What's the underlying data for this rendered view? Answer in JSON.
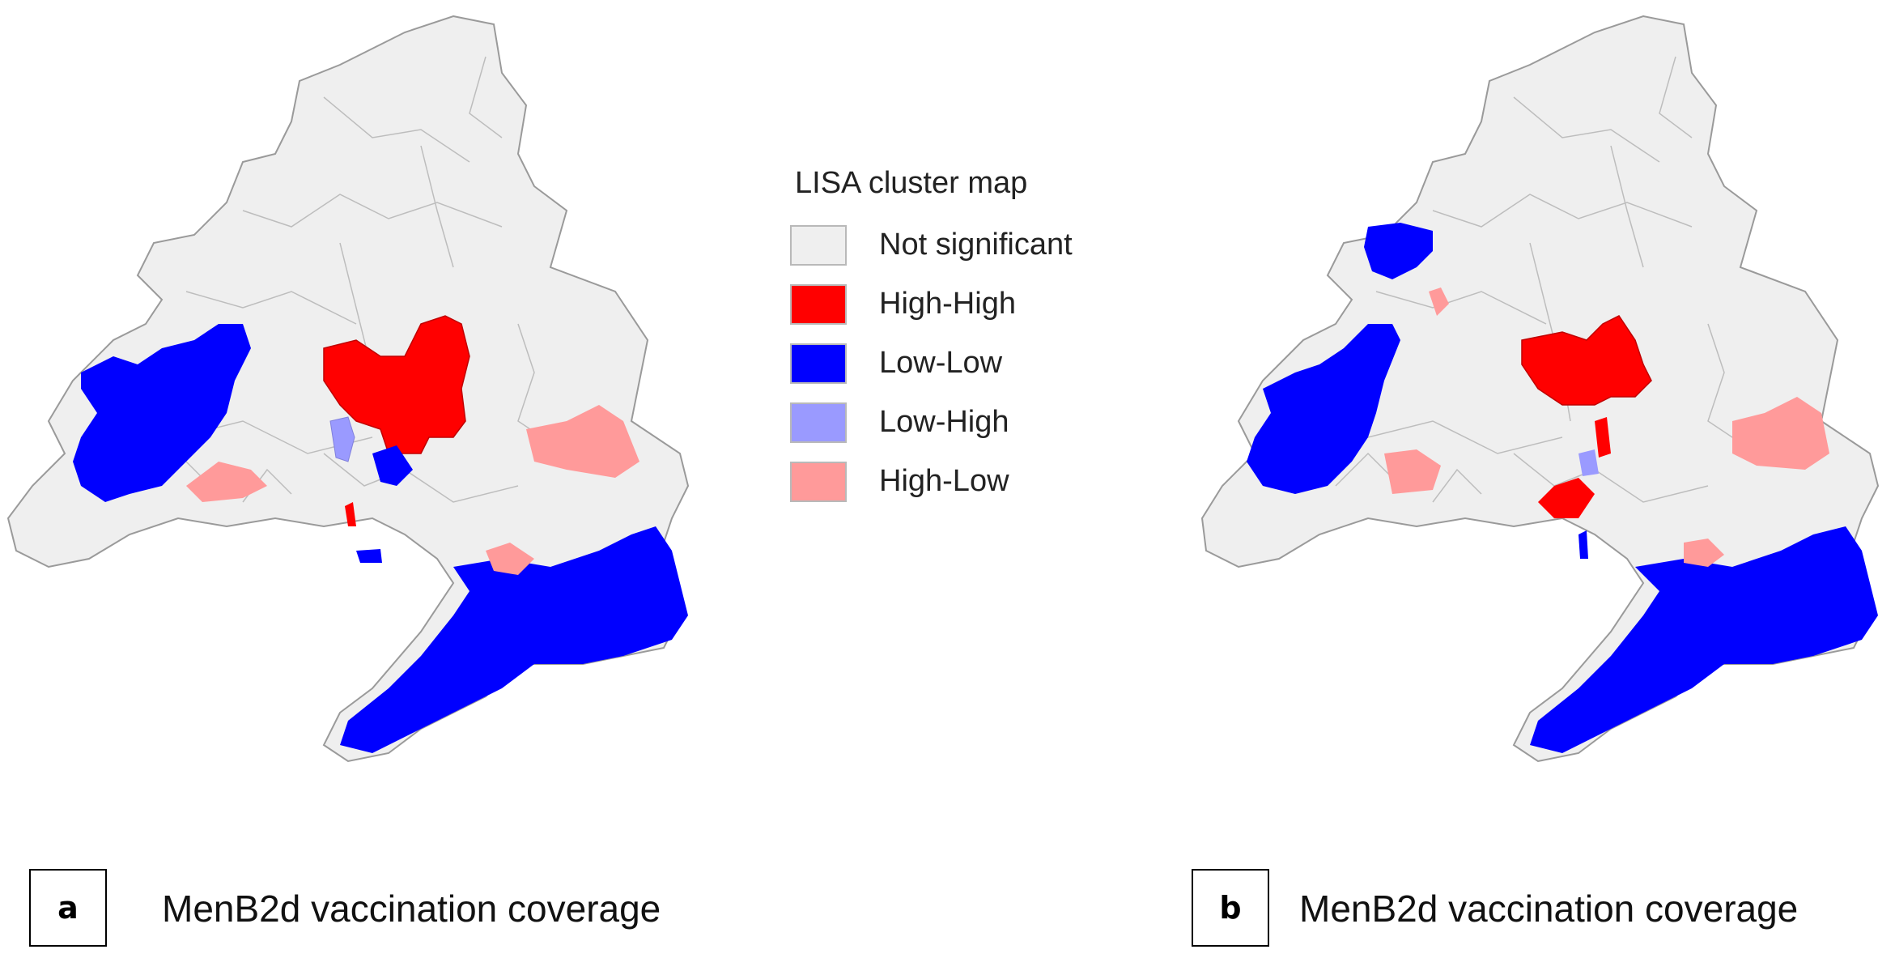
{
  "legend": {
    "title": "LISA cluster map",
    "items": [
      {
        "label": "Not significant",
        "color": "#efefef"
      },
      {
        "label": "High-High",
        "color": "#ff0000"
      },
      {
        "label": "Low-Low",
        "color": "#0000ff"
      },
      {
        "label": "Low-High",
        "color": "#9a9aff"
      },
      {
        "label": "High-Low",
        "color": "#ff9a9a"
      }
    ]
  },
  "colors": {
    "region_fill": "#efefef",
    "boundary": "#a8a8a8",
    "high_high": "#ff0000",
    "low_low": "#0000ff",
    "low_high": "#9a9aff",
    "high_low": "#ff9a9a"
  },
  "panels": [
    {
      "letter": "a",
      "title": "MenB2d vaccination coverage"
    },
    {
      "letter": "b",
      "title": "MenB2d vaccination coverage"
    }
  ]
}
